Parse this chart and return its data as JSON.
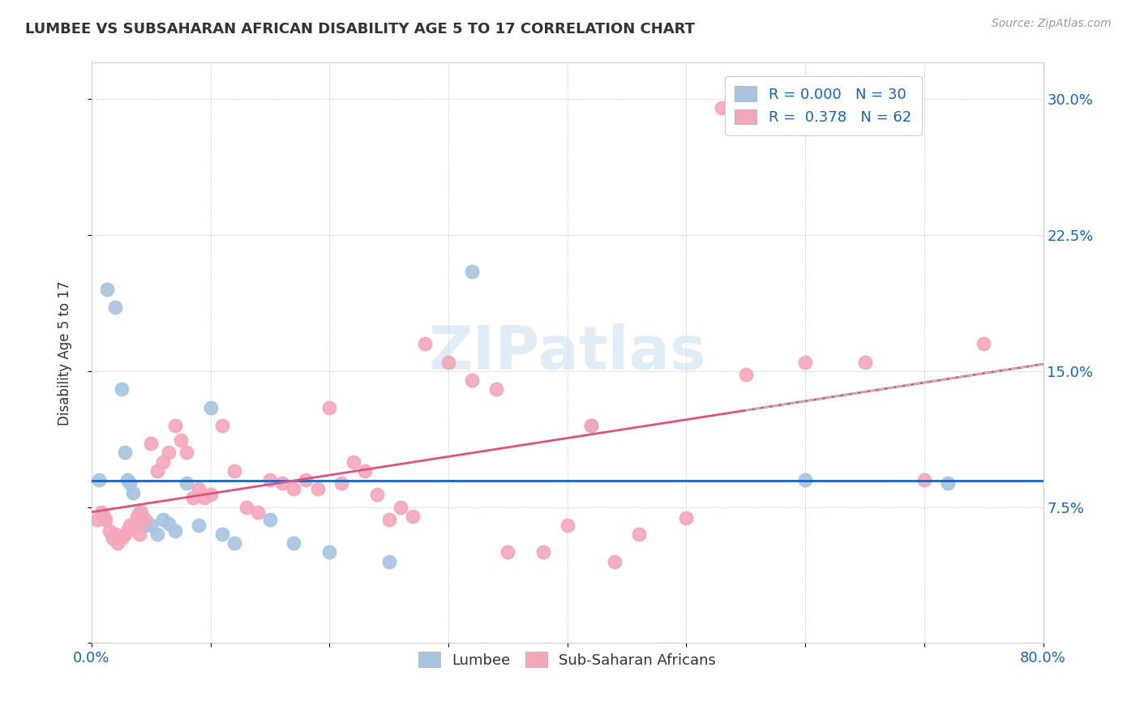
{
  "title": "LUMBEE VS SUBSAHARAN AFRICAN DISABILITY AGE 5 TO 17 CORRELATION CHART",
  "source": "Source: ZipAtlas.com",
  "ylabel_label": "Disability Age 5 to 17",
  "xlim": [
    0.0,
    0.8
  ],
  "ylim": [
    0.0,
    0.32
  ],
  "xticks": [
    0.0,
    0.1,
    0.2,
    0.3,
    0.4,
    0.5,
    0.6,
    0.7,
    0.8
  ],
  "yticks": [
    0.0,
    0.075,
    0.15,
    0.225,
    0.3
  ],
  "lumbee_color": "#a8c4e0",
  "subsaharan_color": "#f4a7b9",
  "trendline_lumbee_color": "#1565C0",
  "trendline_subsaharan_color": "#e05080",
  "tick_color": "#1565C0",
  "R_lumbee": 0.0,
  "N_lumbee": 30,
  "R_subsaharan": 0.378,
  "N_subsaharan": 62,
  "watermark": "ZIPatlas",
  "background_color": "#ffffff",
  "lumbee_x": [
    0.006,
    0.013,
    0.02,
    0.025,
    0.028,
    0.03,
    0.032,
    0.035,
    0.038,
    0.04,
    0.042,
    0.045,
    0.05,
    0.055,
    0.06,
    0.065,
    0.07,
    0.08,
    0.09,
    0.1,
    0.11,
    0.12,
    0.15,
    0.17,
    0.2,
    0.25,
    0.32,
    0.42,
    0.6,
    0.72
  ],
  "lumbee_y": [
    0.09,
    0.195,
    0.185,
    0.14,
    0.105,
    0.09,
    0.088,
    0.083,
    0.068,
    0.072,
    0.07,
    0.065,
    0.065,
    0.06,
    0.068,
    0.066,
    0.062,
    0.088,
    0.065,
    0.13,
    0.06,
    0.055,
    0.068,
    0.055,
    0.05,
    0.045,
    0.205,
    0.12,
    0.09,
    0.088
  ],
  "subsaharan_x": [
    0.005,
    0.008,
    0.01,
    0.012,
    0.015,
    0.018,
    0.02,
    0.022,
    0.025,
    0.028,
    0.03,
    0.032,
    0.035,
    0.038,
    0.04,
    0.042,
    0.045,
    0.05,
    0.055,
    0.06,
    0.065,
    0.07,
    0.075,
    0.08,
    0.085,
    0.09,
    0.095,
    0.1,
    0.11,
    0.12,
    0.13,
    0.14,
    0.15,
    0.16,
    0.17,
    0.18,
    0.19,
    0.2,
    0.21,
    0.22,
    0.23,
    0.24,
    0.25,
    0.26,
    0.27,
    0.28,
    0.3,
    0.32,
    0.34,
    0.35,
    0.38,
    0.4,
    0.42,
    0.44,
    0.46,
    0.5,
    0.53,
    0.55,
    0.6,
    0.65,
    0.7,
    0.75
  ],
  "subsaharan_y": [
    0.068,
    0.072,
    0.07,
    0.068,
    0.062,
    0.058,
    0.06,
    0.055,
    0.058,
    0.06,
    0.062,
    0.065,
    0.065,
    0.07,
    0.06,
    0.072,
    0.068,
    0.11,
    0.095,
    0.1,
    0.105,
    0.12,
    0.112,
    0.105,
    0.08,
    0.085,
    0.08,
    0.082,
    0.12,
    0.095,
    0.075,
    0.072,
    0.09,
    0.088,
    0.085,
    0.09,
    0.085,
    0.13,
    0.088,
    0.1,
    0.095,
    0.082,
    0.068,
    0.075,
    0.07,
    0.165,
    0.155,
    0.145,
    0.14,
    0.05,
    0.05,
    0.065,
    0.12,
    0.045,
    0.06,
    0.069,
    0.295,
    0.148,
    0.155,
    0.155,
    0.09,
    0.165
  ]
}
